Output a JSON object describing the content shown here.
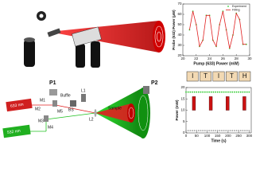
{
  "diagram": {
    "labels": [
      "P1",
      "P2",
      "M1",
      "M2",
      "M3",
      "M4",
      "M5",
      "L1",
      "L2",
      "BS",
      "Buffle",
      "Sample",
      "633 nm",
      "532 nm"
    ]
  },
  "chart_data": [
    {
      "type": "line",
      "x_label": "Pump (633) Power (mW)",
      "y_label": "Probe (532) Power (µW)",
      "x": [
        21,
        21.5,
        22,
        22.5,
        23,
        23.5,
        24,
        24.5,
        25,
        25.5,
        26,
        26.5,
        27,
        27.5,
        28,
        28.5,
        29,
        29.5
      ],
      "series": [
        {
          "name": "Experiment",
          "color": "#33cc33",
          "mode": "markers",
          "values": [
            45,
            63,
            50,
            29,
            35,
            59,
            59,
            35,
            29,
            50,
            63,
            45,
            27,
            40,
            61,
            55,
            31,
            31
          ]
        },
        {
          "name": "Fitting",
          "color": "#e02020",
          "mode": "line",
          "values": [
            45,
            63,
            50,
            29,
            35,
            59,
            59,
            35,
            29,
            50,
            63,
            45,
            27,
            40,
            61,
            55,
            31,
            31
          ]
        }
      ],
      "xlim": [
        20,
        30
      ],
      "xticks": [
        20,
        22,
        24,
        26,
        28,
        30
      ],
      "ylim": [
        20,
        70
      ],
      "yticks": [
        20,
        30,
        40,
        50,
        60,
        70
      ]
    },
    {
      "type": "scatter",
      "x_label": "Time (s)",
      "y_label": "Power (mW)",
      "segments": [
        "I",
        "T",
        "I",
        "T",
        "H"
      ],
      "x": [
        0,
        10,
        20,
        30,
        40,
        50,
        60,
        70,
        80,
        90,
        100,
        110,
        120,
        130,
        140,
        150,
        160,
        170,
        180,
        190,
        200,
        210,
        220,
        230,
        240,
        250,
        260,
        270,
        280,
        290,
        300
      ],
      "series": [
        {
          "color": "#33cc33",
          "values": [
            18,
            18,
            18,
            18,
            18,
            18,
            18,
            18,
            18,
            18,
            18,
            18,
            18,
            18,
            18,
            18,
            18,
            18,
            18,
            18,
            18,
            18,
            18,
            18,
            18,
            18,
            18,
            18,
            18,
            18,
            18
          ]
        },
        {
          "color": "#999999",
          "values": [
            1,
            1,
            1,
            1,
            1,
            1,
            1,
            1,
            1,
            1,
            1,
            1,
            1,
            1,
            1,
            1,
            1,
            1,
            1,
            1,
            1,
            1,
            1,
            1,
            1,
            1,
            1,
            1,
            1,
            1,
            1
          ]
        }
      ],
      "blocks_color": "#cc1111",
      "blocks": [
        {
          "x": [
            30,
            45
          ],
          "y": [
            10,
            16
          ]
        },
        {
          "x": [
            110,
            125
          ],
          "y": [
            10,
            16
          ]
        },
        {
          "x": [
            190,
            205
          ],
          "y": [
            10,
            16
          ]
        },
        {
          "x": [
            270,
            285
          ],
          "y": [
            10,
            16
          ]
        }
      ],
      "xlim": [
        0,
        310
      ],
      "xticks": [
        0,
        50,
        100,
        150,
        200,
        250,
        300
      ],
      "ylim": [
        0,
        20
      ],
      "yticks": [
        0,
        5,
        10,
        15,
        20
      ]
    }
  ]
}
